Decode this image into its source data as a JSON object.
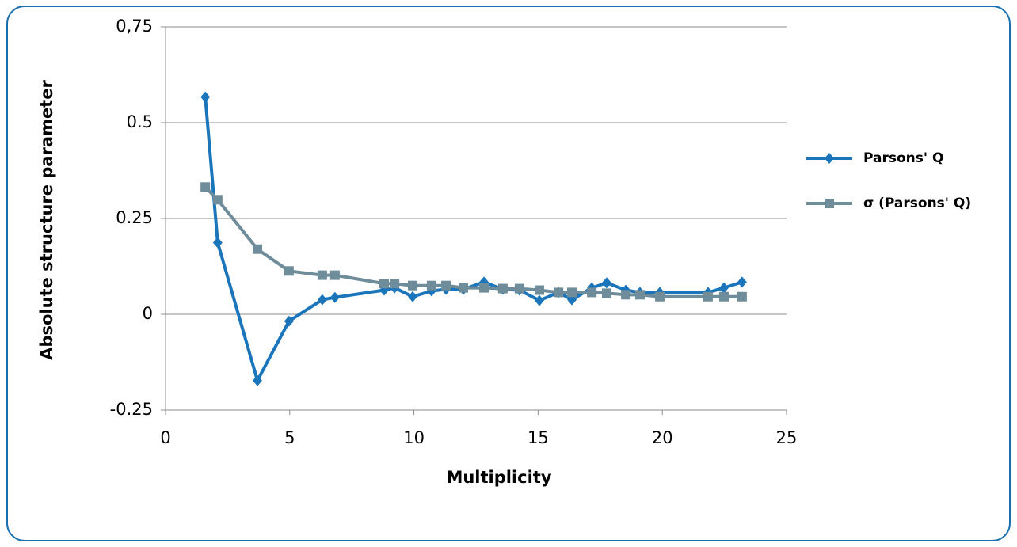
{
  "chart_data": {
    "type": "line",
    "xlabel": "Multiplicity",
    "ylabel": "Absolute structure parameter",
    "x": [
      1.6,
      2.1,
      3.7,
      4.97,
      6.31,
      6.82,
      8.8,
      9.22,
      9.95,
      10.71,
      11.29,
      11.99,
      12.82,
      13.58,
      14.25,
      15.05,
      15.82,
      16.36,
      17.16,
      17.76,
      18.53,
      19.1,
      19.9,
      21.84,
      22.48,
      23.21
    ],
    "series": [
      {
        "name": "Parsons' Q",
        "color": "#1b75bb",
        "marker": "diamond",
        "values": [
          0.567,
          0.187,
          -0.173,
          -0.018,
          0.038,
          0.044,
          0.063,
          0.069,
          0.046,
          0.061,
          0.065,
          0.065,
          0.084,
          0.065,
          0.063,
          0.036,
          0.057,
          0.038,
          0.069,
          0.082,
          0.063,
          0.057,
          0.057,
          0.057,
          0.069,
          0.084
        ]
      },
      {
        "name": "σ (Parsons' Q)",
        "color": "#6e8c99",
        "marker": "square",
        "values": [
          0.332,
          0.299,
          0.17,
          0.113,
          0.102,
          0.102,
          0.08,
          0.08,
          0.075,
          0.075,
          0.075,
          0.069,
          0.069,
          0.067,
          0.067,
          0.063,
          0.057,
          0.057,
          0.057,
          0.055,
          0.051,
          0.051,
          0.046,
          0.046,
          0.046,
          0.046
        ]
      }
    ],
    "xlim": [
      0,
      25
    ],
    "xticks": [
      0,
      5,
      10,
      15,
      20,
      25
    ],
    "ylim": [
      -0.25,
      0.75
    ],
    "yticks": [
      -0.25,
      0,
      0.25,
      0.5,
      {
        "value": 0.75,
        "label": "0,75"
      }
    ],
    "grid": true,
    "legend": "right"
  }
}
